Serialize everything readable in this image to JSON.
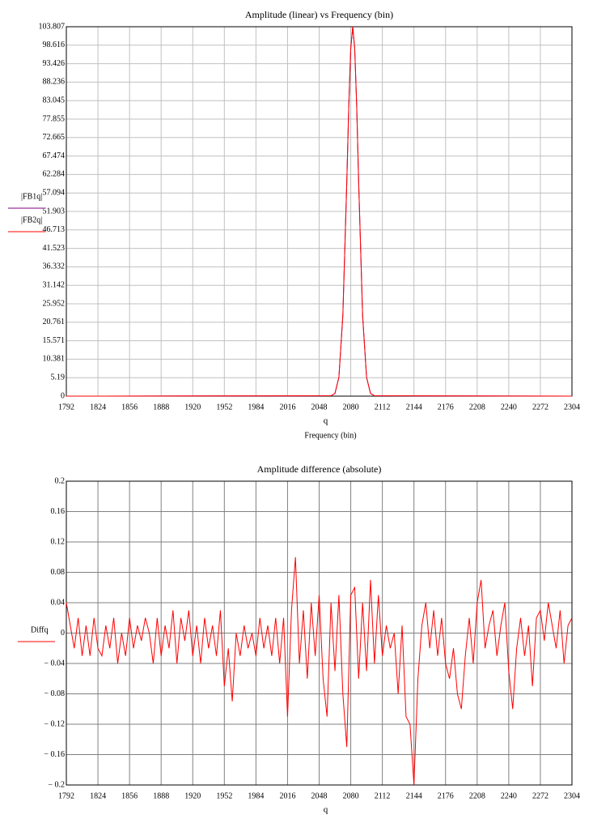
{
  "chart_data": [
    {
      "type": "line",
      "title": "Amplitude (linear) vs Frequency (bin)",
      "x_variable": "q",
      "xlabel": "Frequency (bin)",
      "x": [
        1792,
        2060,
        2064,
        2068,
        2072,
        2076,
        2078,
        2080,
        2082,
        2084,
        2086,
        2088,
        2092,
        2096,
        2100,
        2104,
        2304
      ],
      "series": [
        {
          "name": "|FB1q|",
          "color": "#800080",
          "values": [
            0,
            0.1,
            0.77,
            5.3,
            22.7,
            60.2,
            81.6,
            97.7,
            103.8,
            97.7,
            81.6,
            60.2,
            22.7,
            5.3,
            0.77,
            0.1,
            0
          ]
        },
        {
          "name": "|FB2q|",
          "color": "#ff0000",
          "values": [
            0,
            0.1,
            0.77,
            5.3,
            22.7,
            60.2,
            81.6,
            97.7,
            103.8,
            97.7,
            81.6,
            60.2,
            22.7,
            5.3,
            0.77,
            0.1,
            0
          ]
        }
      ],
      "xlim": [
        1792,
        2304
      ],
      "xticks": [
        1792,
        1824,
        1856,
        1888,
        1920,
        1952,
        1984,
        2016,
        2048,
        2080,
        2112,
        2144,
        2176,
        2208,
        2240,
        2272,
        2304
      ],
      "ylim": [
        0,
        103.807
      ],
      "yticks": [
        0,
        5.19,
        10.381,
        15.571,
        20.761,
        25.952,
        31.142,
        36.332,
        41.523,
        46.713,
        51.903,
        57.094,
        62.284,
        67.474,
        72.665,
        77.855,
        83.045,
        88.236,
        93.426,
        98.616,
        103.807
      ],
      "grid": true,
      "grid_color": "#c0c0c0"
    },
    {
      "type": "line",
      "title": "Amplitude difference (absolute)",
      "x_variable": "q",
      "x": [
        1792,
        1796,
        1800,
        1804,
        1808,
        1812,
        1816,
        1820,
        1824,
        1828,
        1832,
        1836,
        1840,
        1844,
        1848,
        1852,
        1856,
        1860,
        1864,
        1868,
        1872,
        1876,
        1880,
        1884,
        1888,
        1892,
        1896,
        1900,
        1904,
        1908,
        1912,
        1916,
        1920,
        1924,
        1928,
        1932,
        1936,
        1940,
        1944,
        1948,
        1952,
        1956,
        1960,
        1964,
        1968,
        1972,
        1976,
        1980,
        1984,
        1988,
        1992,
        1996,
        2000,
        2004,
        2008,
        2012,
        2016,
        2020,
        2024,
        2028,
        2032,
        2036,
        2040,
        2044,
        2048,
        2052,
        2056,
        2060,
        2064,
        2068,
        2072,
        2076,
        2080,
        2084,
        2088,
        2092,
        2096,
        2100,
        2104,
        2108,
        2112,
        2116,
        2120,
        2124,
        2128,
        2132,
        2136,
        2140,
        2144,
        2148,
        2152,
        2156,
        2160,
        2164,
        2168,
        2172,
        2176,
        2180,
        2184,
        2188,
        2192,
        2196,
        2200,
        2204,
        2208,
        2212,
        2216,
        2220,
        2224,
        2228,
        2232,
        2236,
        2240,
        2244,
        2248,
        2252,
        2256,
        2260,
        2264,
        2268,
        2272,
        2276,
        2280,
        2284,
        2288,
        2292,
        2296,
        2300,
        2304
      ],
      "series": [
        {
          "name": "Diffq",
          "color": "#ff0000",
          "values": [
            0.04,
            0.01,
            -0.02,
            0.02,
            -0.03,
            0.01,
            -0.03,
            0.02,
            -0.02,
            -0.03,
            0.01,
            -0.02,
            0.02,
            -0.04,
            0,
            -0.03,
            0.02,
            -0.02,
            0.01,
            -0.01,
            0.02,
            0,
            -0.04,
            0.02,
            -0.03,
            0.01,
            -0.02,
            0.03,
            -0.04,
            0.02,
            -0.01,
            0.03,
            -0.03,
            0.01,
            -0.04,
            0.02,
            -0.02,
            0.01,
            -0.03,
            0.03,
            -0.07,
            -0.02,
            -0.09,
            0,
            -0.03,
            0.01,
            -0.02,
            0,
            -0.03,
            0.02,
            -0.02,
            0.01,
            -0.03,
            0.02,
            -0.04,
            0.02,
            -0.11,
            0.03,
            0.1,
            -0.04,
            0.03,
            -0.06,
            0.04,
            -0.03,
            0.05,
            -0.06,
            -0.11,
            0.04,
            -0.05,
            0.05,
            -0.08,
            -0.15,
            0.05,
            0.06,
            -0.06,
            0.04,
            -0.05,
            0.07,
            -0.04,
            0.05,
            -0.03,
            0.01,
            -0.02,
            0,
            -0.08,
            0.01,
            -0.11,
            -0.12,
            -0.2,
            -0.06,
            0.01,
            0.04,
            -0.02,
            0.03,
            -0.03,
            0.02,
            -0.04,
            -0.06,
            -0.02,
            -0.08,
            -0.1,
            -0.03,
            0.02,
            -0.04,
            0.04,
            0.07,
            -0.02,
            0.01,
            0.03,
            -0.03,
            0.01,
            0.04,
            -0.05,
            -0.1,
            -0.02,
            0.02,
            -0.03,
            0.01,
            -0.07,
            0.02,
            0.03,
            -0.01,
            0.04,
            0.01,
            -0.02,
            0.03,
            -0.04,
            0.01,
            0.02
          ]
        }
      ],
      "xlim": [
        1792,
        2304
      ],
      "xticks": [
        1792,
        1824,
        1856,
        1888,
        1920,
        1952,
        1984,
        2016,
        2048,
        2080,
        2112,
        2144,
        2176,
        2208,
        2240,
        2272,
        2304
      ],
      "ylim": [
        -0.2,
        0.2
      ],
      "yticks": [
        {
          "value": -0.2,
          "label": "− 0.2"
        },
        {
          "value": -0.16,
          "label": "− 0.16"
        },
        {
          "value": -0.12,
          "label": "− 0.12"
        },
        {
          "value": -0.08,
          "label": "− 0.08"
        },
        {
          "value": -0.04,
          "label": "− 0.04"
        },
        0,
        0.04,
        0.08,
        0.12,
        0.16,
        0.2
      ],
      "grid": true,
      "grid_color": "#808080"
    }
  ]
}
